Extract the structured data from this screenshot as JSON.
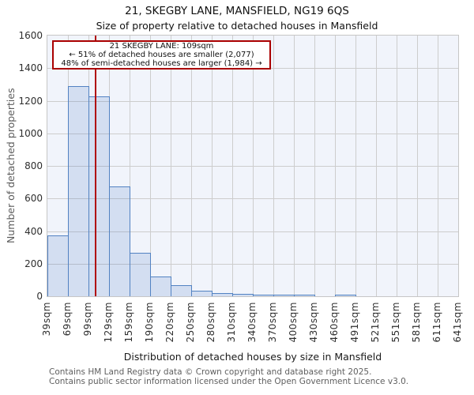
{
  "title": "21, SKEGBY LANE, MANSFIELD, NG19 6QS",
  "subtitle": "Size of property relative to detached houses in Mansfield",
  "annotation": {
    "line1": "21 SKEGBY LANE: 109sqm",
    "line2": "← 51% of detached houses are smaller (2,077)",
    "line3": "48% of semi-detached houses are larger (1,984) →"
  },
  "marker": {
    "property_size_sqm": 109,
    "color": "#b00b0b"
  },
  "y_axis": {
    "label": "Number of detached properties",
    "ticks": [
      0,
      200,
      400,
      600,
      800,
      1000,
      1200,
      1400,
      1600
    ]
  },
  "x_axis": {
    "label": "Distribution of detached houses by size in Mansfield",
    "tick_labels": [
      "39sqm",
      "69sqm",
      "99sqm",
      "129sqm",
      "159sqm",
      "190sqm",
      "220sqm",
      "250sqm",
      "280sqm",
      "310sqm",
      "340sqm",
      "370sqm",
      "400sqm",
      "430sqm",
      "460sqm",
      "491sqm",
      "521sqm",
      "551sqm",
      "581sqm",
      "611sqm",
      "641sqm"
    ]
  },
  "footer": {
    "line1": "Contains HM Land Registry data © Crown copyright and database right 2025.",
    "line2": "Contains public sector information licensed under the Open Government Licence v3.0."
  },
  "chart_data": {
    "type": "bar",
    "title": "21, SKEGBY LANE, MANSFIELD, NG19 6QS — Size of property relative to detached houses in Mansfield",
    "xlabel": "Distribution of detached houses by size in Mansfield",
    "ylabel": "Number of detached properties",
    "bin_edges_sqm": [
      39,
      69,
      99,
      129,
      159,
      190,
      220,
      250,
      280,
      310,
      340,
      370,
      400,
      430,
      460,
      491,
      521,
      551,
      581,
      611,
      641
    ],
    "values": [
      375,
      1290,
      1225,
      675,
      265,
      120,
      68,
      33,
      20,
      15,
      12,
      8,
      8,
      0,
      6,
      0,
      0,
      0,
      0,
      0
    ],
    "ylim": [
      0,
      1600
    ],
    "grid": true,
    "legend": "none",
    "colors": {
      "bar_fill": "#d2ddf1",
      "bar_edge": "#5282c2",
      "plot_background": "#f1f4fb",
      "gridline": "#cdcdcd",
      "marker_line": "#b00b0b",
      "annotation_border": "#aa0000"
    }
  }
}
